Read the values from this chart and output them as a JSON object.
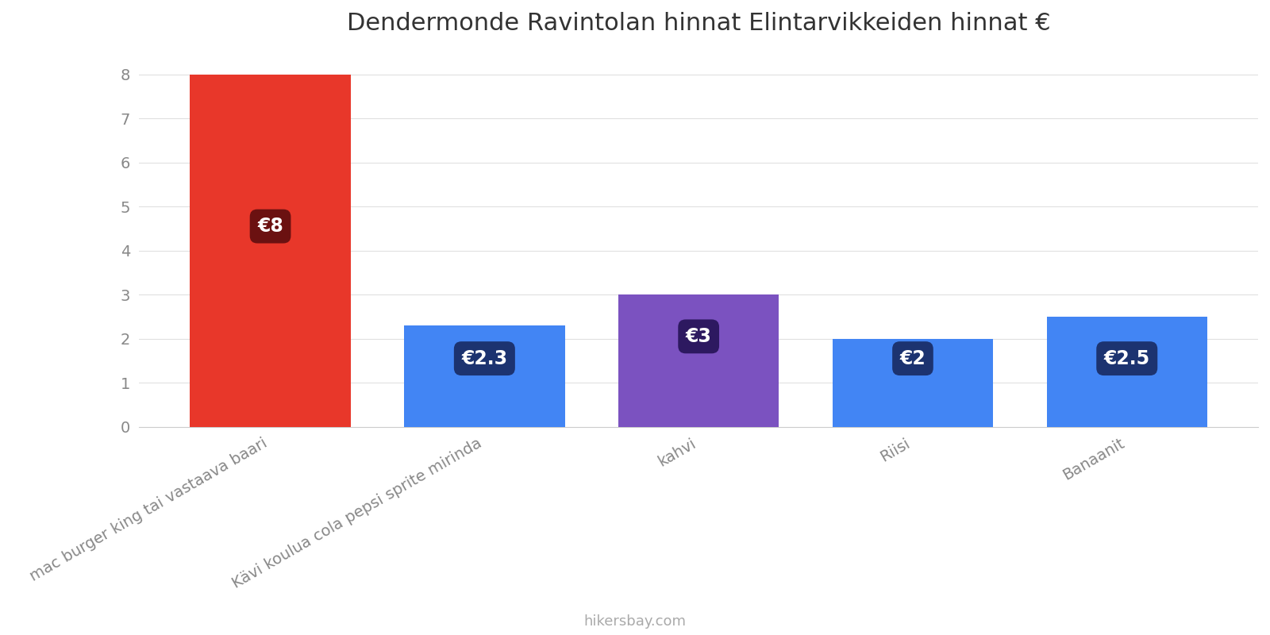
{
  "title": "Dendermonde Ravintolan hinnat Elintarvikkeiden hinnat €",
  "categories": [
    "mac burger king tai vastaava baari",
    "Kävi koulua cola pepsi sprite mirinda",
    "kahvi",
    "Riisi",
    "Banaanit"
  ],
  "values": [
    8,
    2.3,
    3,
    2,
    2.5
  ],
  "bar_colors": [
    "#e8372a",
    "#4285f4",
    "#7b52c0",
    "#4285f4",
    "#4285f4"
  ],
  "label_texts": [
    "€8",
    "€2.3",
    "€3",
    "€2",
    "€2.5"
  ],
  "label_bg_colors": [
    "#6b1111",
    "#1c3370",
    "#2d1960",
    "#1c3370",
    "#1c3370"
  ],
  "label_y_positions": [
    4.55,
    1.55,
    2.05,
    1.55,
    1.55
  ],
  "ylim": [
    0,
    8.5
  ],
  "yticks": [
    0,
    1,
    2,
    3,
    4,
    5,
    6,
    7,
    8
  ],
  "footer_text": "hikersbay.com",
  "background_color": "#ffffff",
  "grid_color": "#e0e0e0",
  "title_fontsize": 22,
  "tick_fontsize": 14,
  "label_fontsize": 17,
  "footer_fontsize": 13,
  "bar_width": 0.75
}
